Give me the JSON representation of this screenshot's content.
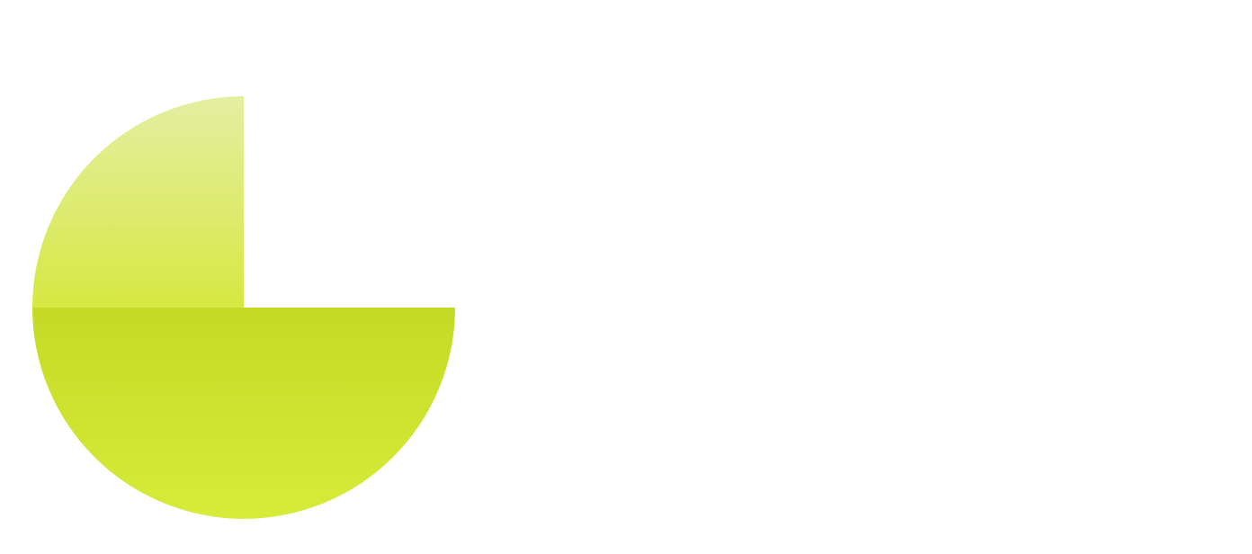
{
  "graphic": {
    "shapes": [
      {
        "name": "lower-half-disc",
        "kind": "semicircle",
        "colors": {
          "top": "#c4da24",
          "bottom": "#d6ec3a"
        }
      },
      {
        "name": "upper-left-quarter-disc",
        "kind": "quarter-circle",
        "colors": {
          "top": "#e4efa2",
          "bottom": "#d6e842"
        }
      }
    ],
    "background": "#ffffff"
  }
}
